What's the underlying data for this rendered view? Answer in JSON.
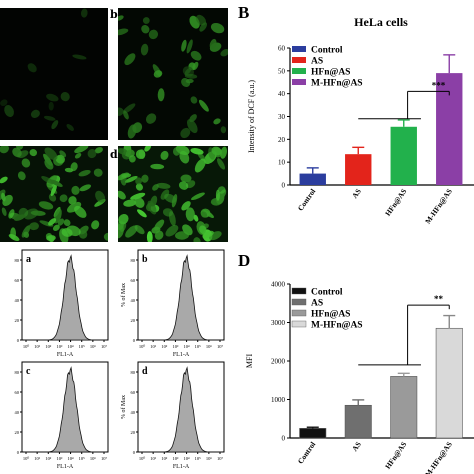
{
  "panel_letters": {
    "B": "B",
    "D": "D"
  },
  "microscopy": {
    "labels": [
      "b",
      "d"
    ]
  },
  "flow": {
    "panels": [
      {
        "label": "a",
        "ylabel": "",
        "xlabel": "FL1-A"
      },
      {
        "label": "b",
        "ylabel": "% of Max",
        "xlabel": "FL1-A"
      },
      {
        "label": "c",
        "ylabel": "",
        "xlabel": "FL1-A"
      },
      {
        "label": "d",
        "ylabel": "% of Max",
        "xlabel": "FL1-A"
      }
    ],
    "y_ticks": [
      "80",
      "60",
      "40",
      "20",
      "0"
    ],
    "x_ticks": [
      "10⁰",
      "10¹",
      "10²",
      "10³",
      "10⁴",
      "10⁵",
      "10⁶",
      "10⁷"
    ]
  },
  "chart_data": [
    {
      "type": "bar",
      "title": "HeLa cells",
      "ylabel": "Intensity of DCF (a.u.)",
      "categories": [
        "Control",
        "AS",
        "HFn@AS",
        "M-HFn@AS"
      ],
      "values": [
        5,
        13.5,
        25.5,
        49
      ],
      "errors": [
        2.5,
        3,
        3,
        8
      ],
      "colors": [
        "#2b3d9e",
        "#e3241b",
        "#22b14c",
        "#8b3fa6"
      ],
      "ylim": [
        0,
        60
      ],
      "yticks": [
        0,
        10,
        20,
        30,
        40,
        50,
        60
      ],
      "legend": [
        "Control",
        "AS",
        "HFn@AS",
        "M-HFn@AS"
      ],
      "significance": "***"
    },
    {
      "type": "bar",
      "title": "",
      "ylabel": "MFI",
      "categories": [
        "Control",
        "AS",
        "HFn@AS",
        "M-HFn@AS"
      ],
      "values": [
        250,
        850,
        1600,
        2850
      ],
      "errors": [
        30,
        140,
        80,
        330
      ],
      "colors": [
        "#111111",
        "#6f6f6f",
        "#9a9a9a",
        "#d9d9d9"
      ],
      "ylim": [
        0,
        4000
      ],
      "yticks": [
        0,
        1000,
        2000,
        3000,
        4000
      ],
      "legend": [
        "Control",
        "AS",
        "HFn@AS",
        "M-HFn@AS"
      ],
      "significance": "**"
    }
  ]
}
